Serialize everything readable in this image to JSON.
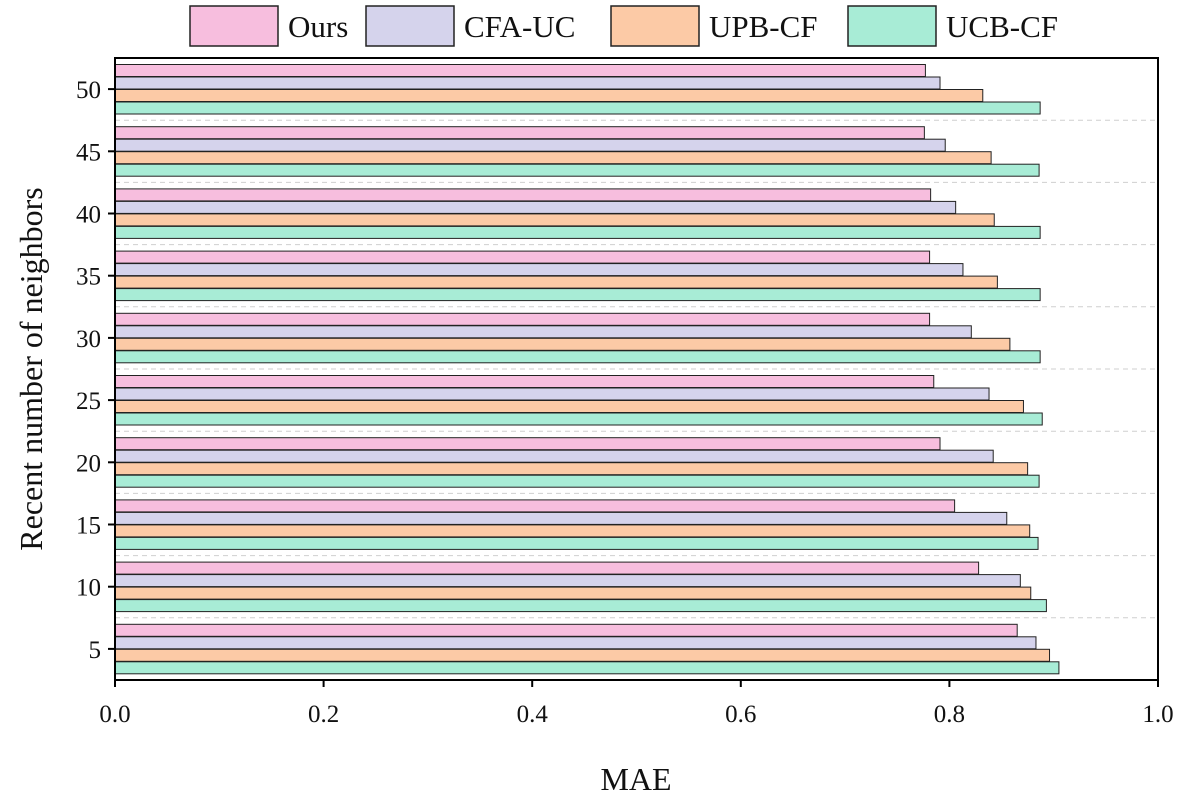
{
  "chart_data": {
    "type": "bar",
    "orientation": "horizontal",
    "categories": [
      "5",
      "10",
      "15",
      "20",
      "25",
      "30",
      "35",
      "40",
      "45",
      "50"
    ],
    "series": [
      {
        "name": "Ours",
        "color": "#f7bede",
        "values": [
          0.865,
          0.828,
          0.805,
          0.791,
          0.785,
          0.781,
          0.781,
          0.782,
          0.776,
          0.777
        ]
      },
      {
        "name": "CFA-UC",
        "color": "#d5d3ec",
        "values": [
          0.883,
          0.868,
          0.855,
          0.842,
          0.838,
          0.821,
          0.813,
          0.806,
          0.796,
          0.791
        ]
      },
      {
        "name": "UPB-CF",
        "color": "#fccaa6",
        "values": [
          0.896,
          0.878,
          0.877,
          0.875,
          0.871,
          0.858,
          0.846,
          0.843,
          0.84,
          0.832
        ]
      },
      {
        "name": "UCB-CF",
        "color": "#a8ecd6",
        "values": [
          0.905,
          0.893,
          0.885,
          0.886,
          0.889,
          0.887,
          0.887,
          0.887,
          0.886,
          0.887
        ]
      }
    ],
    "xlabel": "MAE",
    "ylabel": "Recent number of neighbors",
    "xlim": [
      0,
      1.0
    ],
    "xticks": [
      "0.0",
      "0.2",
      "0.4",
      "0.6",
      "0.8",
      "1.0"
    ],
    "grid": "horizontal dashed separators",
    "legend_position": "top"
  }
}
